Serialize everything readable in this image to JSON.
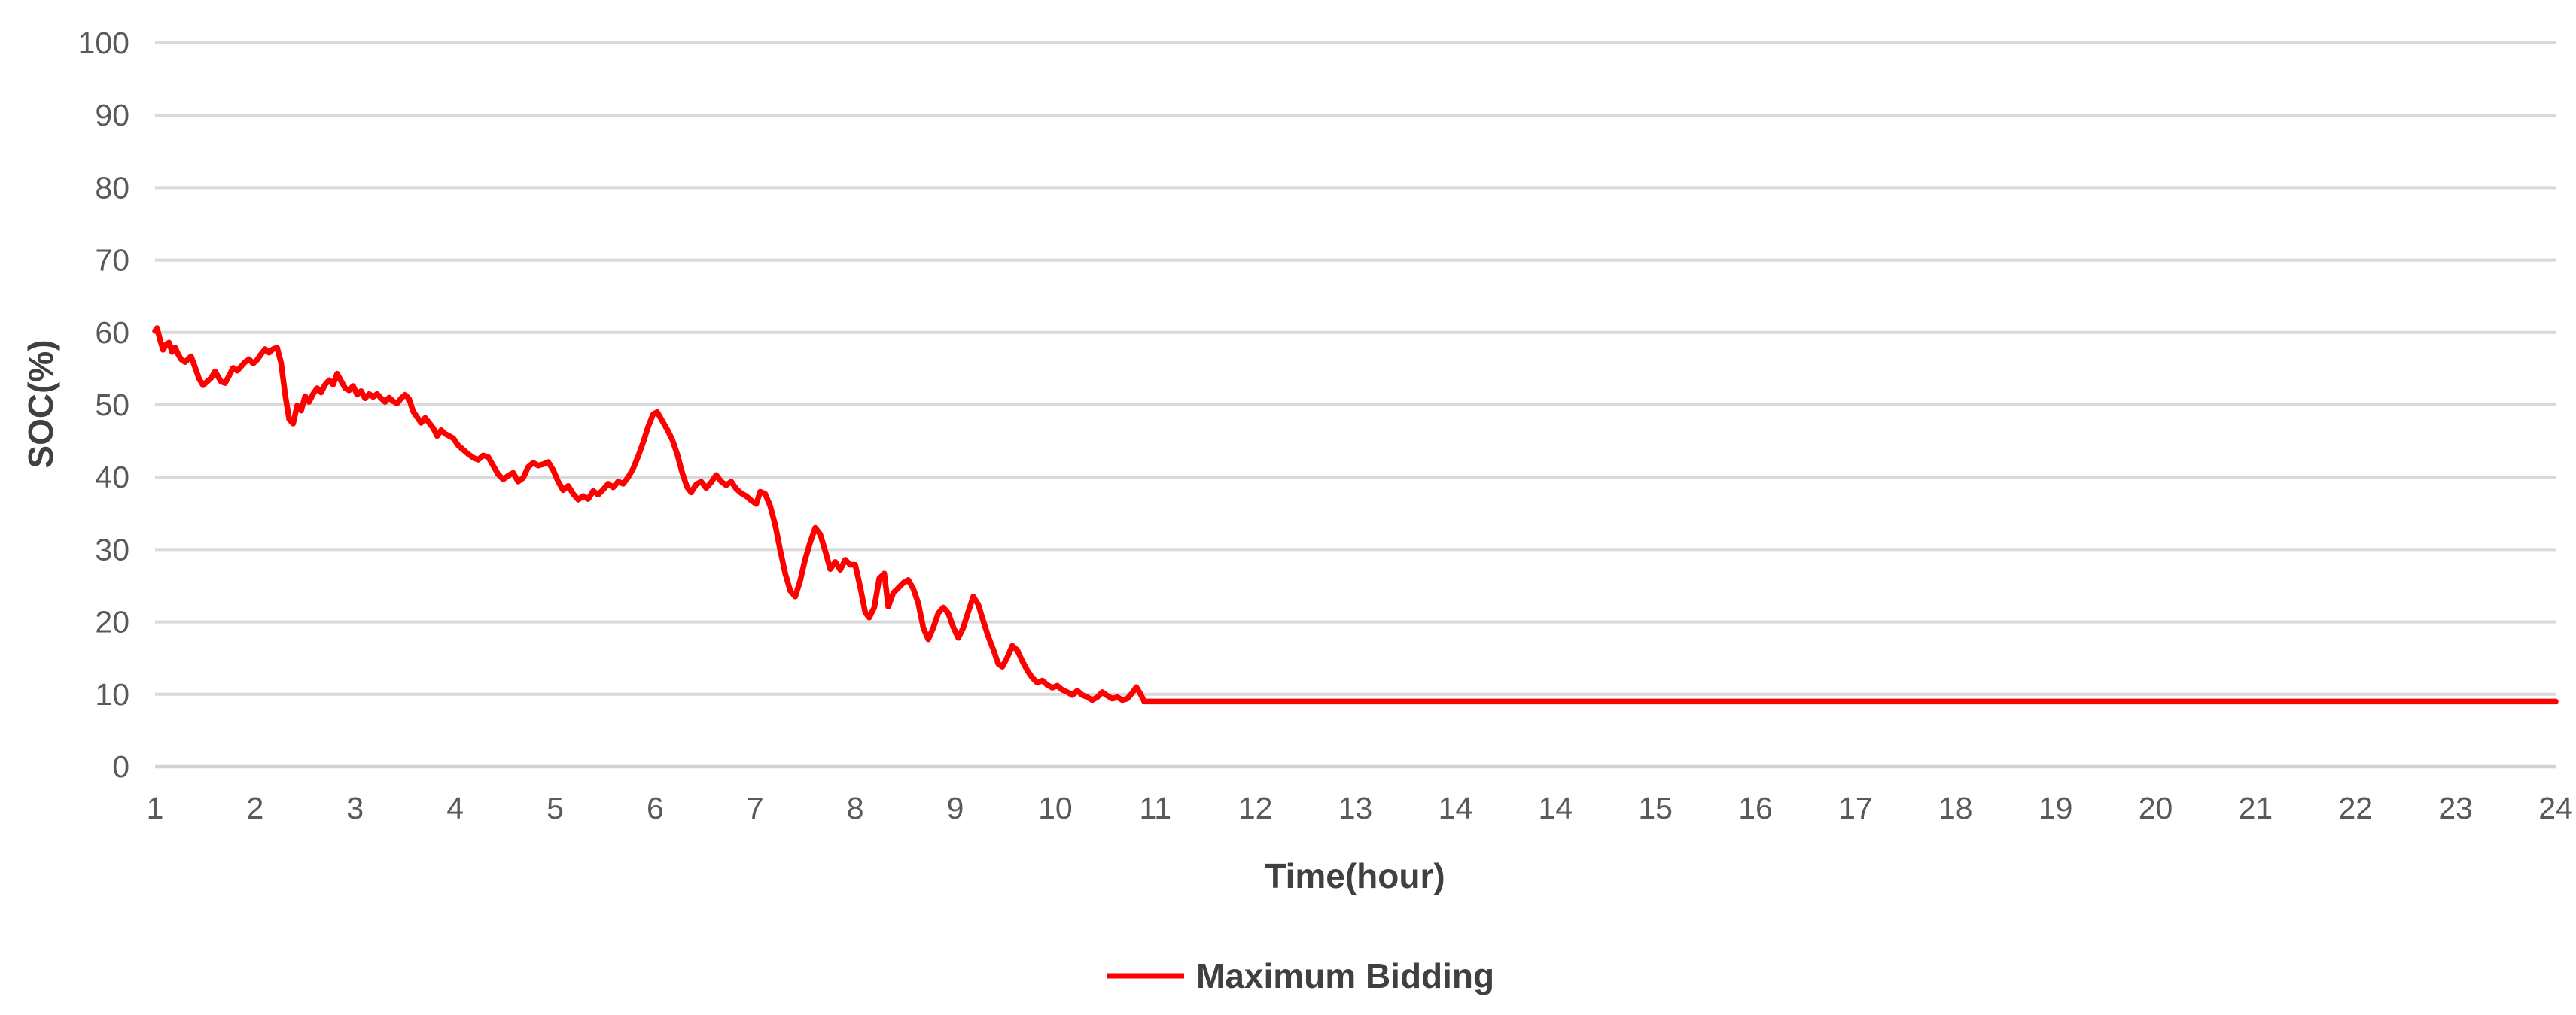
{
  "chart_data": {
    "type": "line",
    "title": "",
    "xlabel": "Time(hour)",
    "ylabel": "SOC(%)",
    "x_axis": {
      "mode": "category",
      "tick_labels": [
        "1",
        "2",
        "3",
        "4",
        "5",
        "6",
        "7",
        "8",
        "9",
        "10",
        "11",
        "12",
        "13",
        "14",
        "14",
        "15",
        "16",
        "17",
        "18",
        "19",
        "20",
        "21",
        "22",
        "23",
        "24"
      ]
    },
    "y_axis": {
      "ticks": [
        0,
        10,
        20,
        30,
        40,
        50,
        60,
        70,
        80,
        90,
        100
      ],
      "range": [
        0,
        100
      ]
    },
    "grid": {
      "horizontal": true,
      "vertical": false
    },
    "legend": {
      "position": "bottom-center",
      "entries": [
        {
          "label": "Maximum Bidding",
          "color": "#FF0000"
        }
      ]
    },
    "series": [
      {
        "name": "Maximum Bidding",
        "color": "#FF0000",
        "x_unit": "category-position",
        "points": [
          [
            1.0,
            60.2
          ],
          [
            1.02,
            60.6
          ],
          [
            1.05,
            59.0
          ],
          [
            1.08,
            57.6
          ],
          [
            1.11,
            58.3
          ],
          [
            1.14,
            58.6
          ],
          [
            1.17,
            57.3
          ],
          [
            1.2,
            57.9
          ],
          [
            1.23,
            57.0
          ],
          [
            1.26,
            56.3
          ],
          [
            1.3,
            55.9
          ],
          [
            1.33,
            56.3
          ],
          [
            1.36,
            56.7
          ],
          [
            1.4,
            55.2
          ],
          [
            1.44,
            53.6
          ],
          [
            1.48,
            52.7
          ],
          [
            1.52,
            53.2
          ],
          [
            1.56,
            53.7
          ],
          [
            1.6,
            54.6
          ],
          [
            1.63,
            53.9
          ],
          [
            1.66,
            53.2
          ],
          [
            1.7,
            53.0
          ],
          [
            1.74,
            54.0
          ],
          [
            1.78,
            55.1
          ],
          [
            1.82,
            54.7
          ],
          [
            1.86,
            55.3
          ],
          [
            1.9,
            55.9
          ],
          [
            1.94,
            56.3
          ],
          [
            1.98,
            55.7
          ],
          [
            2.02,
            56.2
          ],
          [
            2.06,
            57.0
          ],
          [
            2.1,
            57.7
          ],
          [
            2.14,
            57.2
          ],
          [
            2.18,
            57.7
          ],
          [
            2.22,
            57.9
          ],
          [
            2.26,
            55.8
          ],
          [
            2.3,
            51.5
          ],
          [
            2.34,
            48.0
          ],
          [
            2.38,
            47.4
          ],
          [
            2.42,
            49.9
          ],
          [
            2.46,
            49.2
          ],
          [
            2.5,
            51.2
          ],
          [
            2.54,
            50.4
          ],
          [
            2.58,
            51.5
          ],
          [
            2.62,
            52.3
          ],
          [
            2.66,
            51.7
          ],
          [
            2.7,
            52.8
          ],
          [
            2.74,
            53.4
          ],
          [
            2.78,
            52.8
          ],
          [
            2.82,
            54.3
          ],
          [
            2.86,
            53.3
          ],
          [
            2.9,
            52.3
          ],
          [
            2.94,
            52.0
          ],
          [
            2.98,
            52.6
          ],
          [
            3.02,
            51.4
          ],
          [
            3.06,
            51.9
          ],
          [
            3.1,
            50.9
          ],
          [
            3.14,
            51.5
          ],
          [
            3.18,
            51.1
          ],
          [
            3.22,
            51.5
          ],
          [
            3.26,
            50.9
          ],
          [
            3.3,
            50.4
          ],
          [
            3.34,
            51.0
          ],
          [
            3.38,
            50.5
          ],
          [
            3.42,
            50.2
          ],
          [
            3.46,
            50.9
          ],
          [
            3.5,
            51.4
          ],
          [
            3.54,
            50.8
          ],
          [
            3.58,
            49.1
          ],
          [
            3.62,
            48.3
          ],
          [
            3.66,
            47.5
          ],
          [
            3.7,
            48.2
          ],
          [
            3.74,
            47.5
          ],
          [
            3.78,
            46.8
          ],
          [
            3.82,
            45.7
          ],
          [
            3.86,
            46.5
          ],
          [
            3.9,
            46.0
          ],
          [
            3.94,
            45.7
          ],
          [
            3.98,
            45.4
          ],
          [
            4.03,
            44.4
          ],
          [
            4.08,
            43.8
          ],
          [
            4.13,
            43.2
          ],
          [
            4.18,
            42.7
          ],
          [
            4.23,
            42.4
          ],
          [
            4.28,
            43.0
          ],
          [
            4.33,
            42.8
          ],
          [
            4.38,
            41.6
          ],
          [
            4.43,
            40.4
          ],
          [
            4.48,
            39.7
          ],
          [
            4.53,
            40.2
          ],
          [
            4.58,
            40.6
          ],
          [
            4.63,
            39.4
          ],
          [
            4.68,
            39.9
          ],
          [
            4.73,
            41.4
          ],
          [
            4.78,
            42.0
          ],
          [
            4.83,
            41.6
          ],
          [
            4.88,
            41.8
          ],
          [
            4.93,
            42.1
          ],
          [
            4.98,
            41.0
          ],
          [
            5.03,
            39.4
          ],
          [
            5.08,
            38.2
          ],
          [
            5.13,
            38.8
          ],
          [
            5.18,
            37.7
          ],
          [
            5.23,
            36.9
          ],
          [
            5.28,
            37.4
          ],
          [
            5.33,
            37.0
          ],
          [
            5.38,
            38.1
          ],
          [
            5.43,
            37.6
          ],
          [
            5.48,
            38.3
          ],
          [
            5.53,
            39.1
          ],
          [
            5.58,
            38.6
          ],
          [
            5.63,
            39.4
          ],
          [
            5.68,
            39.1
          ],
          [
            5.73,
            40.0
          ],
          [
            5.78,
            41.2
          ],
          [
            5.83,
            42.9
          ],
          [
            5.88,
            44.8
          ],
          [
            5.93,
            47.0
          ],
          [
            5.98,
            48.7
          ],
          [
            6.02,
            49.0
          ],
          [
            6.07,
            47.8
          ],
          [
            6.12,
            46.6
          ],
          [
            6.17,
            45.2
          ],
          [
            6.22,
            43.2
          ],
          [
            6.27,
            40.6
          ],
          [
            6.32,
            38.6
          ],
          [
            6.36,
            37.9
          ],
          [
            6.41,
            39.0
          ],
          [
            6.46,
            39.4
          ],
          [
            6.51,
            38.5
          ],
          [
            6.56,
            39.3
          ],
          [
            6.61,
            40.3
          ],
          [
            6.66,
            39.4
          ],
          [
            6.71,
            38.9
          ],
          [
            6.76,
            39.4
          ],
          [
            6.81,
            38.4
          ],
          [
            6.86,
            37.8
          ],
          [
            6.91,
            37.4
          ],
          [
            6.96,
            36.8
          ],
          [
            7.01,
            36.3
          ],
          [
            7.05,
            38.0
          ],
          [
            7.1,
            37.7
          ],
          [
            7.15,
            36.0
          ],
          [
            7.2,
            33.4
          ],
          [
            7.25,
            29.9
          ],
          [
            7.3,
            26.7
          ],
          [
            7.35,
            24.3
          ],
          [
            7.4,
            23.5
          ],
          [
            7.45,
            25.7
          ],
          [
            7.5,
            28.7
          ],
          [
            7.55,
            31.0
          ],
          [
            7.6,
            33.0
          ],
          [
            7.65,
            32.1
          ],
          [
            7.7,
            29.8
          ],
          [
            7.75,
            27.3
          ],
          [
            7.8,
            28.3
          ],
          [
            7.85,
            27.2
          ],
          [
            7.9,
            28.6
          ],
          [
            7.95,
            27.9
          ],
          [
            8.0,
            27.9
          ],
          [
            8.05,
            24.8
          ],
          [
            8.1,
            21.3
          ],
          [
            8.14,
            20.6
          ],
          [
            8.19,
            22.0
          ],
          [
            8.24,
            26.0
          ],
          [
            8.29,
            26.7
          ],
          [
            8.33,
            22.1
          ],
          [
            8.38,
            24.0
          ],
          [
            8.43,
            24.7
          ],
          [
            8.48,
            25.4
          ],
          [
            8.53,
            25.8
          ],
          [
            8.58,
            24.6
          ],
          [
            8.63,
            22.6
          ],
          [
            8.68,
            19.2
          ],
          [
            8.73,
            17.6
          ],
          [
            8.78,
            19.2
          ],
          [
            8.83,
            21.2
          ],
          [
            8.88,
            22.0
          ],
          [
            8.93,
            21.2
          ],
          [
            8.98,
            19.3
          ],
          [
            9.03,
            17.8
          ],
          [
            9.08,
            19.2
          ],
          [
            9.13,
            21.4
          ],
          [
            9.18,
            23.5
          ],
          [
            9.23,
            22.4
          ],
          [
            9.28,
            20.1
          ],
          [
            9.33,
            18.0
          ],
          [
            9.38,
            16.2
          ],
          [
            9.43,
            14.2
          ],
          [
            9.47,
            13.8
          ],
          [
            9.52,
            15.1
          ],
          [
            9.57,
            16.7
          ],
          [
            9.62,
            16.1
          ],
          [
            9.67,
            14.6
          ],
          [
            9.72,
            13.3
          ],
          [
            9.77,
            12.3
          ],
          [
            9.82,
            11.6
          ],
          [
            9.87,
            11.9
          ],
          [
            9.92,
            11.3
          ],
          [
            9.97,
            10.9
          ],
          [
            10.02,
            11.2
          ],
          [
            10.07,
            10.6
          ],
          [
            10.12,
            10.3
          ],
          [
            10.17,
            9.9
          ],
          [
            10.22,
            10.5
          ],
          [
            10.27,
            9.9
          ],
          [
            10.32,
            9.6
          ],
          [
            10.37,
            9.2
          ],
          [
            10.42,
            9.6
          ],
          [
            10.47,
            10.3
          ],
          [
            10.52,
            9.8
          ],
          [
            10.57,
            9.4
          ],
          [
            10.62,
            9.6
          ],
          [
            10.67,
            9.2
          ],
          [
            10.72,
            9.4
          ],
          [
            10.77,
            10.2
          ],
          [
            10.81,
            11.0
          ],
          [
            10.85,
            10.1
          ],
          [
            10.89,
            9.0
          ],
          [
            11,
            9
          ],
          [
            12,
            9
          ],
          [
            13,
            9
          ],
          [
            14,
            9
          ],
          [
            15,
            9
          ],
          [
            16,
            9
          ],
          [
            17,
            9
          ],
          [
            18,
            9
          ],
          [
            19,
            9
          ],
          [
            20,
            9
          ],
          [
            21,
            9
          ],
          [
            22,
            9
          ],
          [
            23,
            9
          ],
          [
            24,
            9
          ],
          [
            25,
            9
          ]
        ]
      }
    ]
  },
  "colors": {
    "background": "#FFFFFF",
    "gridline": "#D9D9D9",
    "axis_line": "#D3D3D3",
    "tick_label": "#595959",
    "axis_title": "#404040",
    "legend_text": "#404040",
    "series_red": "#FF0000"
  }
}
